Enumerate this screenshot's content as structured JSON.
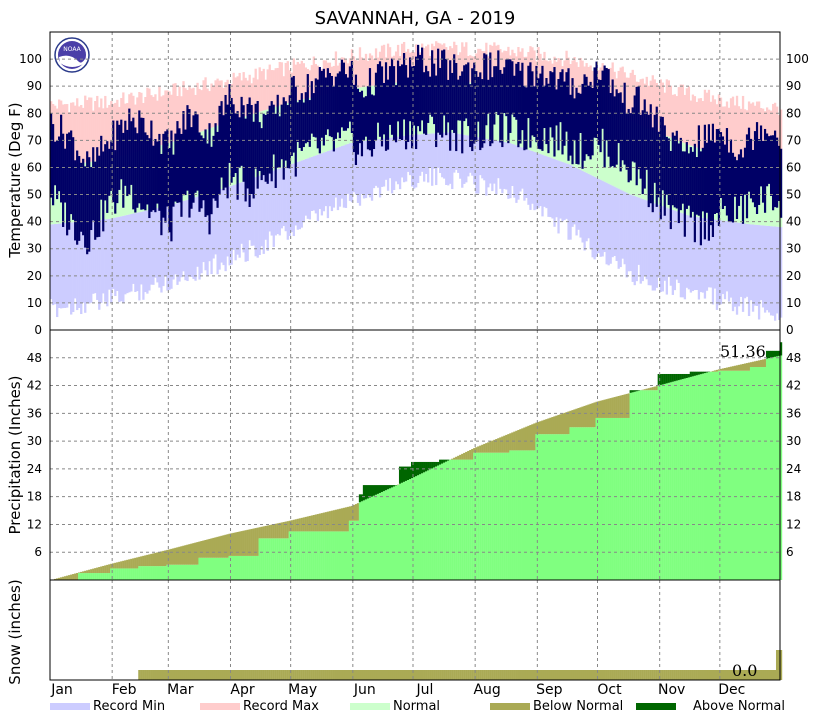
{
  "chart_data": {
    "type": "area",
    "title": "SAVANNAH, GA - 2019",
    "months": [
      "Jan",
      "Feb",
      "Mar",
      "Apr",
      "May",
      "Jun",
      "Jul",
      "Aug",
      "Sep",
      "Oct",
      "Nov",
      "Dec"
    ],
    "legend": [
      {
        "key": "record_min",
        "label": "Record Min",
        "color": "#ccccff"
      },
      {
        "key": "record_max",
        "label": "Record Max",
        "color": "#ffcccc"
      },
      {
        "key": "normal",
        "label": "Normal",
        "color": "#ccffcc"
      },
      {
        "key": "below_normal",
        "label": "Below Normal",
        "color": "#aaaa55"
      },
      {
        "key": "above_normal",
        "label": "Above Normal",
        "color": "#006600"
      }
    ],
    "panels": [
      {
        "name": "temperature",
        "ylabel": "Temperature (Deg F)",
        "ylim": [
          0,
          110
        ],
        "yticks": [
          0,
          10,
          20,
          30,
          40,
          50,
          60,
          70,
          80,
          90,
          100
        ],
        "grid": true,
        "series": [
          {
            "name": "Record Max",
            "color": "#ffcccc",
            "x_day": [
              1,
              30,
              60,
              90,
              120,
              150,
              180,
              200,
              230,
              260,
              290,
              320,
              350,
              365
            ],
            "values": [
              83,
              84,
              88,
              92,
              97,
              101,
              104,
              104,
              103,
              100,
              94,
              87,
              83,
              82
            ]
          },
          {
            "name": "Normal High",
            "color": "#ccffcc",
            "x_day": [
              1,
              30,
              60,
              90,
              120,
              150,
              180,
              200,
              230,
              260,
              290,
              320,
              350,
              365
            ],
            "values": [
              60,
              63,
              69,
              77,
              84,
              89,
              92,
              92,
              90,
              85,
              77,
              68,
              61,
              60
            ]
          },
          {
            "name": "Normal Low",
            "color": "#ccffcc",
            "x_day": [
              1,
              30,
              60,
              90,
              120,
              150,
              180,
              200,
              230,
              260,
              290,
              320,
              350,
              365
            ],
            "values": [
              39,
              41,
              46,
              53,
              61,
              69,
              72,
              73,
              69,
              61,
              50,
              42,
              39,
              38
            ]
          },
          {
            "name": "Record Min",
            "color": "#ccccff",
            "x_day": [
              1,
              30,
              60,
              90,
              120,
              150,
              180,
              200,
              230,
              260,
              290,
              320,
              350,
              365
            ],
            "values": [
              12,
              15,
              22,
              30,
              40,
              52,
              60,
              60,
              56,
              40,
              25,
              18,
              12,
              10
            ]
          },
          {
            "name": "Observed High",
            "color": "#000066",
            "x_day": [
              1,
              10,
              20,
              30,
              40,
              50,
              60,
              70,
              80,
              90,
              100,
              110,
              120,
              130,
              140,
              150,
              155,
              165,
              175,
              185,
              195,
              205,
              215,
              225,
              235,
              245,
              255,
              265,
              275,
              285,
              295,
              305,
              315,
              325,
              335,
              345,
              355,
              365
            ],
            "values": [
              76,
              72,
              60,
              70,
              78,
              75,
              68,
              80,
              72,
              86,
              82,
              78,
              88,
              90,
              95,
              96,
              88,
              94,
              96,
              100,
              98,
              96,
              97,
              98,
              94,
              96,
              92,
              90,
              97,
              86,
              84,
              76,
              66,
              70,
              74,
              66,
              76,
              72
            ]
          },
          {
            "name": "Observed Low",
            "color": "#000066",
            "x_day": [
              1,
              10,
              20,
              30,
              40,
              50,
              60,
              70,
              80,
              90,
              100,
              110,
              120,
              130,
              140,
              150,
              155,
              165,
              175,
              185,
              195,
              205,
              215,
              225,
              235,
              245,
              255,
              265,
              275,
              285,
              295,
              305,
              315,
              325,
              335,
              345,
              355,
              365
            ],
            "values": [
              50,
              40,
              34,
              46,
              52,
              44,
              38,
              48,
              42,
              56,
              52,
              58,
              62,
              66,
              68,
              70,
              66,
              70,
              72,
              74,
              74,
              72,
              72,
              74,
              72,
              72,
              70,
              66,
              68,
              62,
              56,
              46,
              40,
              38,
              42,
              44,
              48,
              48
            ]
          }
        ]
      },
      {
        "name": "precipitation",
        "ylabel": "Precipitation (Inches)",
        "ylim": [
          0,
          54
        ],
        "yticks": [
          6,
          12,
          18,
          24,
          30,
          36,
          42,
          48
        ],
        "grid": true,
        "series": [
          {
            "name": "Normal cumulative",
            "color": "#aaaa55",
            "x_day": [
              1,
              31,
              59,
              90,
              120,
              151,
              181,
              212,
              243,
              273,
              304,
              334,
              365
            ],
            "values": [
              0,
              3.5,
              6.5,
              10,
              12.8,
              16,
              22,
              28.5,
              34,
              38.5,
              42,
              45.5,
              48.5
            ]
          },
          {
            "name": "Observed cumulative",
            "color": "#80ff80",
            "x_day": [
              1,
              15,
              31,
              45,
              59,
              75,
              90,
              105,
              120,
              135,
              150,
              155,
              157,
              175,
              181,
              195,
              212,
              230,
              243,
              260,
              273,
              290,
              304,
              320,
              334,
              350,
              358,
              365
            ],
            "values": [
              0,
              1.5,
              2.5,
              3.0,
              3.3,
              4.8,
              5.2,
              9.0,
              10.5,
              10.5,
              12.8,
              18.5,
              20.5,
              24.5,
              25.5,
              26.0,
              27.5,
              28.0,
              31.5,
              33.0,
              35.0,
              41.0,
              44.5,
              45.0,
              45.2,
              46.0,
              49.5,
              51.36
            ]
          }
        ],
        "annotation": "51.36"
      },
      {
        "name": "snow",
        "ylabel": "Snow (inches)",
        "series": [
          {
            "name": "Normal cumulative snow",
            "color": "#aaaa55",
            "x_day": [
              1,
              44,
              45,
              362,
              363,
              365
            ],
            "values": [
              0,
              0,
              0.1,
              0.1,
              0.3,
              0.3
            ]
          },
          {
            "name": "Observed cumulative snow",
            "color": "#80ff80",
            "x_day": [
              1,
              365
            ],
            "values": [
              0,
              0
            ]
          }
        ],
        "annotation": "0.0"
      }
    ]
  }
}
